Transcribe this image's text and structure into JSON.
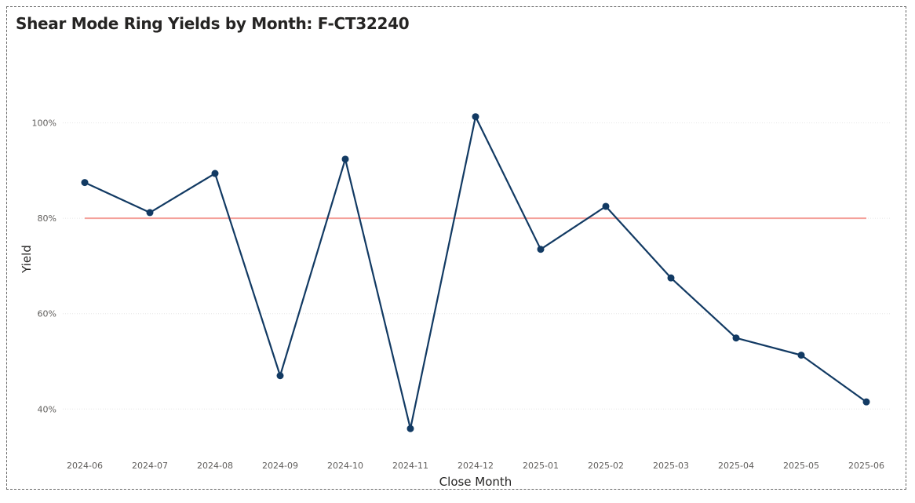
{
  "chart_data": {
    "type": "line",
    "title": "Shear Mode Ring Yields by Month: F-CT32240",
    "xlabel": "Close Month",
    "ylabel": "Yield",
    "categories": [
      "2024-06",
      "2024-07",
      "2024-08",
      "2024-09",
      "2024-10",
      "2024-11",
      "2024-12",
      "2025-01",
      "2025-02",
      "2025-03",
      "2025-04",
      "2025-05",
      "2025-06"
    ],
    "series": [
      {
        "values": [
          87.5,
          81.2,
          89.4,
          47.0,
          92.4,
          35.9,
          101.3,
          73.5,
          82.5,
          67.5,
          54.9,
          51.3,
          41.5
        ],
        "color": "#123a63"
      }
    ],
    "reference_line": {
      "value": 80,
      "color": "#f4a09a"
    },
    "yticks": [
      40,
      60,
      80,
      100
    ],
    "ytick_labels": [
      "40%",
      "60%",
      "80%",
      "100%"
    ],
    "ylim": [
      31,
      108
    ],
    "grid": true,
    "gridline_color": "#e6e6e6"
  }
}
